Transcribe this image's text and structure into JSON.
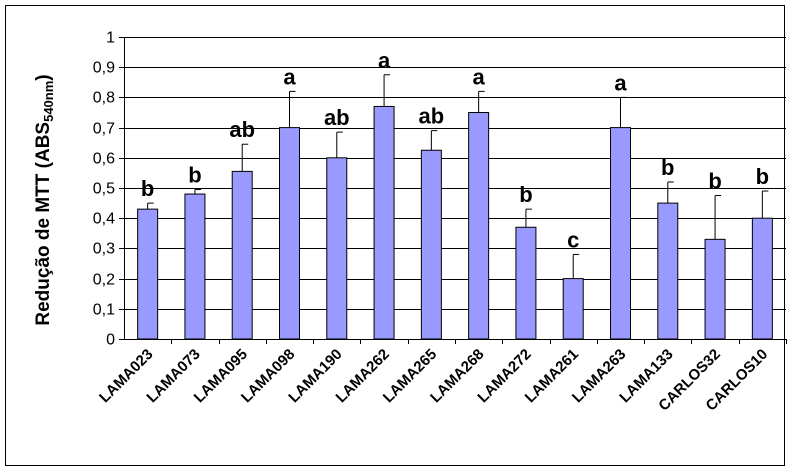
{
  "chart_data": {
    "type": "bar",
    "ylabel": "Redução de MTT (ABS540nm)",
    "ylabel_parts": {
      "main": "Redução de MTT (ABS",
      "sub": "540nm",
      "close": ")"
    },
    "ylim": [
      0,
      1
    ],
    "yticks": [
      "0",
      "0,1",
      "0,2",
      "0,3",
      "0,4",
      "0,5",
      "0,6",
      "0,7",
      "0,8",
      "0,9",
      "1"
    ],
    "grid": true,
    "bar_color": "#9999ff",
    "categories": [
      "LAMA023",
      "LAMA073",
      "LAMA095",
      "LAMA098",
      "LAMA190",
      "LAMA262",
      "LAMA265",
      "LAMA268",
      "LAMA272",
      "LAMA261",
      "LAMA263",
      "LAMA133",
      "CARLOS32",
      "CARLOS10"
    ],
    "values": [
      0.43,
      0.48,
      0.555,
      0.7,
      0.6,
      0.77,
      0.625,
      0.75,
      0.37,
      0.2,
      0.7,
      0.45,
      0.33,
      0.4
    ],
    "errors": [
      0.02,
      0.015,
      0.09,
      0.12,
      0.085,
      0.105,
      0.065,
      0.07,
      0.06,
      0.08,
      0.1,
      0.07,
      0.145,
      0.09
    ],
    "significance": [
      "b",
      "b",
      "ab",
      "a",
      "ab",
      "a",
      "ab",
      "a",
      "b",
      "c",
      "a",
      "b",
      "b",
      "b"
    ]
  }
}
